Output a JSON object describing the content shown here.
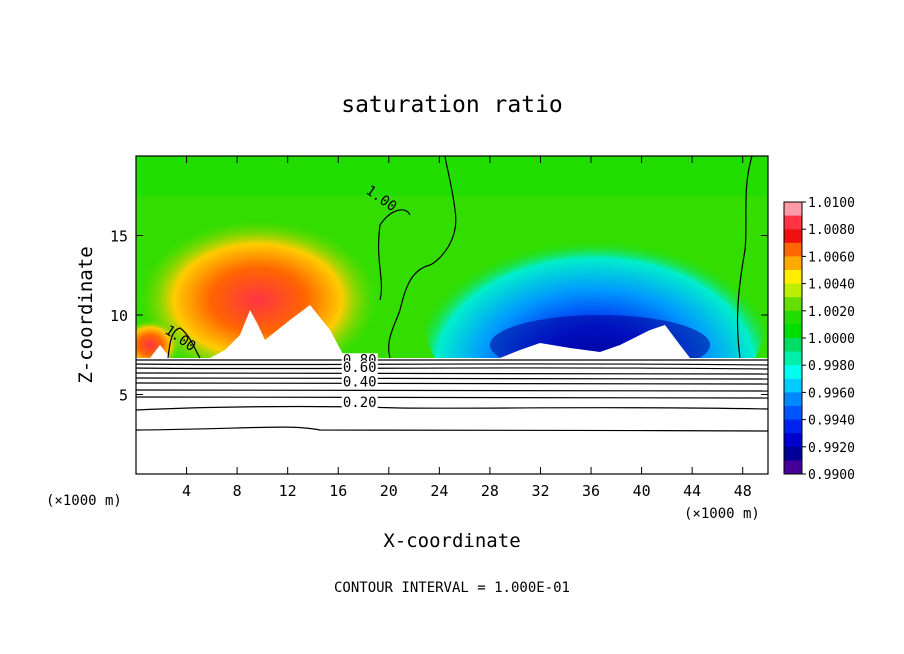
{
  "chart_data": {
    "type": "heatmap",
    "title": "saturation ratio",
    "xlabel": "X-coordinate",
    "ylabel": "Z-coordinate",
    "x_unit": "(×1000 m)",
    "x_unit_right": "(×1000 m)",
    "xlim": [
      0,
      50
    ],
    "ylim": [
      0,
      20
    ],
    "x_ticks": [
      4,
      8,
      12,
      16,
      20,
      24,
      28,
      32,
      36,
      40,
      44,
      48
    ],
    "y_ticks": [
      5,
      10,
      15
    ],
    "footer": "CONTOUR INTERVAL = 1.000E-01",
    "colorbar": {
      "ticks": [
        "1.0100",
        "1.0080",
        "1.0060",
        "1.0040",
        "1.0020",
        "1.0000",
        "0.9980",
        "0.9960",
        "0.9940",
        "0.9920",
        "0.9900"
      ],
      "colors": [
        "#ff9aa8",
        "#ff3344",
        "#ee1111",
        "#ff6600",
        "#ffaa00",
        "#ffee00",
        "#bbee00",
        "#66dd00",
        "#22dd00",
        "#00dd00",
        "#00dd66",
        "#00eeaa",
        "#00ffee",
        "#00ccff",
        "#0088ff",
        "#0055ff",
        "#0022ee",
        "#0000cc",
        "#000099",
        "#440099"
      ]
    },
    "contour_labels": [
      {
        "text": "1.00",
        "x": 19.2,
        "z": 17.1
      },
      {
        "text": "1.00",
        "x": 3.3,
        "z": 8.3
      },
      {
        "text": "0.80",
        "x": 17.7,
        "z": 6.9
      },
      {
        "text": "0.60",
        "x": 17.7,
        "z": 6.4
      },
      {
        "text": "0.40",
        "x": 17.7,
        "z": 5.5
      },
      {
        "text": "0.20",
        "x": 17.7,
        "z": 4.2
      }
    ]
  }
}
